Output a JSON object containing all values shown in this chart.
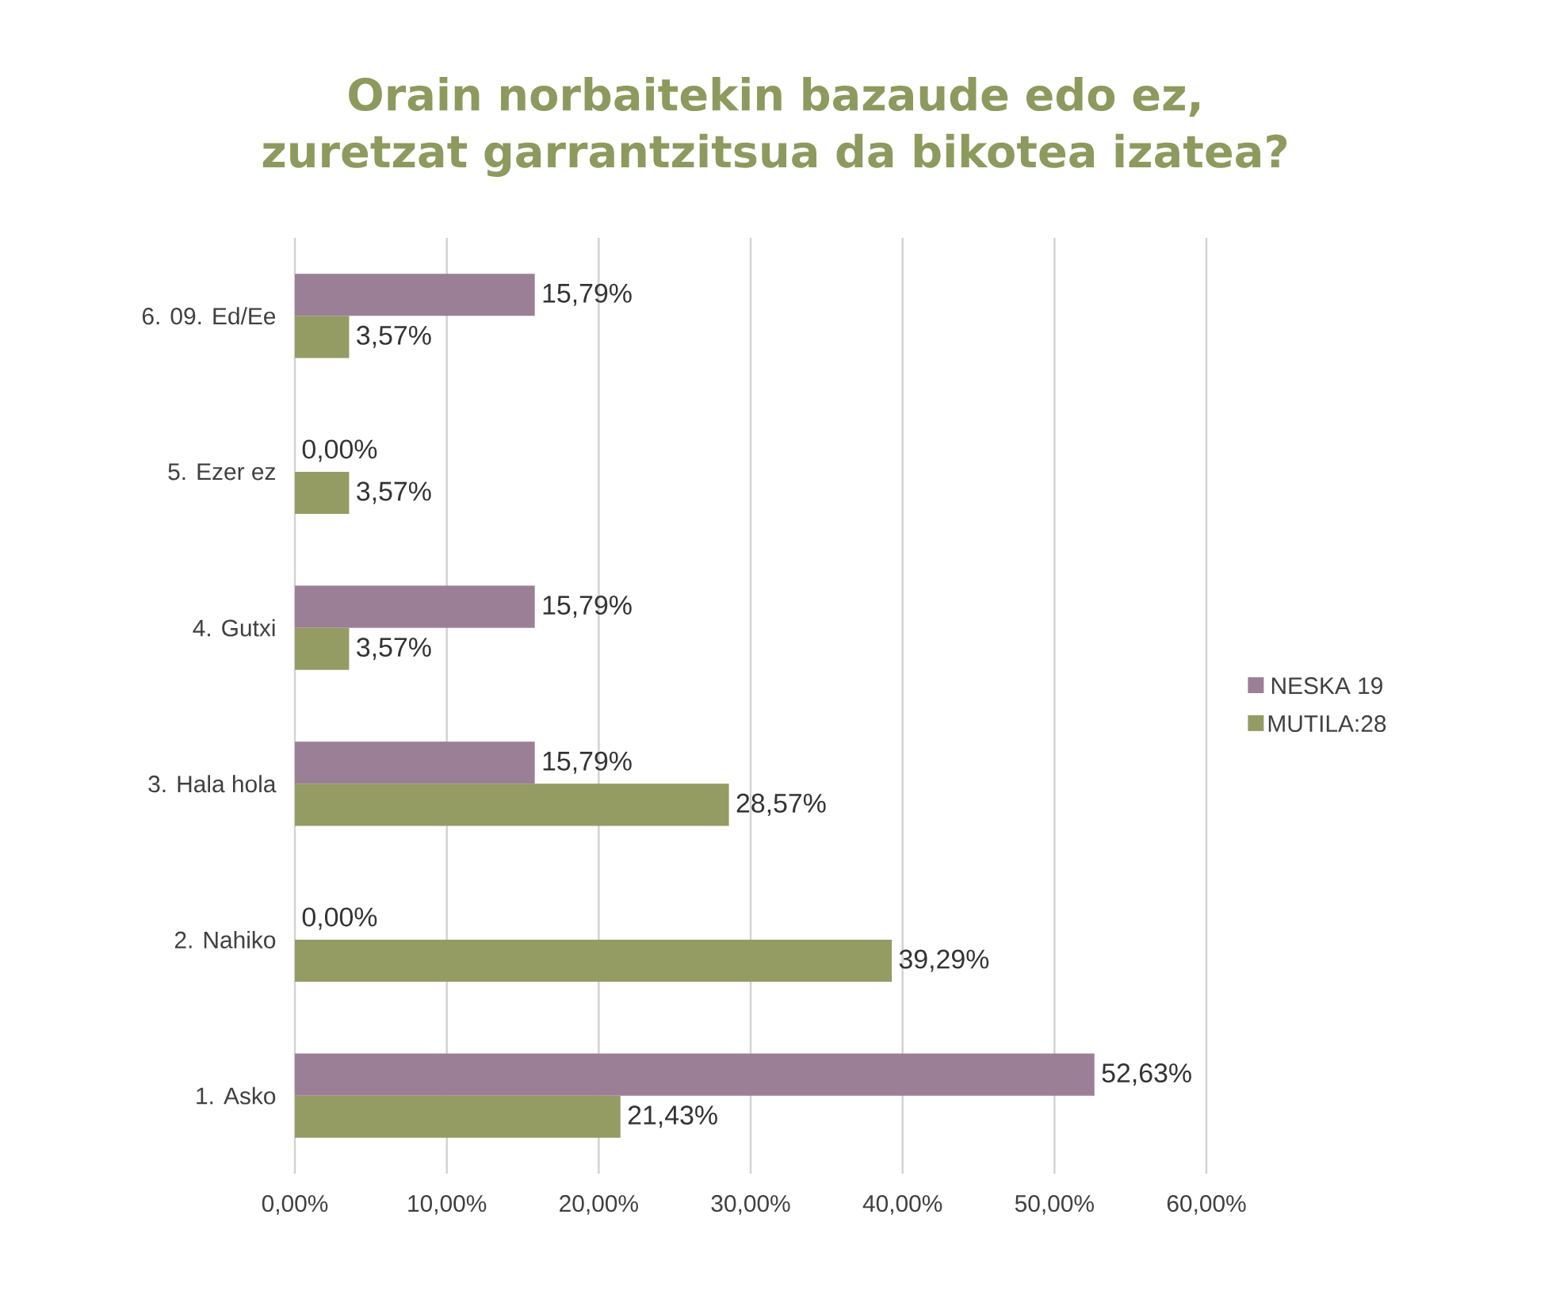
{
  "chart_data": {
    "type": "bar",
    "orientation": "horizontal",
    "title": "Orain norbaitekin bazaude edo ez,\nzuretzat garrantzitsua da bikotea izatea?",
    "categories": [
      "6.   09. Ed/Ee",
      "5.   Ezer ez",
      "4.   Gutxi",
      "3.   Hala hola",
      "2.   Nahiko",
      "1.   Asko"
    ],
    "series": [
      {
        "name": "NESKA 19",
        "color": "#9b7f97",
        "values": [
          15.79,
          0,
          15.79,
          15.79,
          0,
          52.63
        ],
        "value_labels": [
          "15,79%",
          "0,00%",
          "15,79%",
          "15,79%",
          "0,00%",
          "52,63%"
        ]
      },
      {
        "name": "MUTILA:28",
        "color": "#949c63",
        "values": [
          3.57,
          3.57,
          3.57,
          28.57,
          39.29,
          21.43
        ],
        "value_labels": [
          "3,57%",
          "3,57%",
          "3,57%",
          "28,57%",
          "39,29%",
          "21,43%"
        ]
      }
    ],
    "xlim": [
      0,
      60
    ],
    "xticks": [
      {
        "value": 0,
        "label": "0,00%"
      },
      {
        "value": 10,
        "label": "10,00%"
      },
      {
        "value": 20,
        "label": "20,00%"
      },
      {
        "value": 30,
        "label": "30,00%"
      },
      {
        "value": 40,
        "label": "40,00%"
      },
      {
        "value": 50,
        "label": "50,00%"
      },
      {
        "value": 60,
        "label": "60,00%"
      }
    ],
    "grid": "x",
    "legend": "right"
  }
}
